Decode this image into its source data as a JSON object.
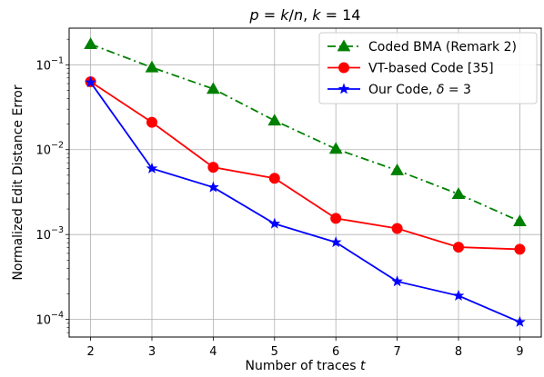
{
  "chart_data": {
    "type": "line",
    "title": "p = k/n, k = 14",
    "xlabel": "Number of traces t",
    "ylabel": "Normalized Edit Distance Error",
    "x": [
      2,
      3,
      4,
      5,
      6,
      7,
      8,
      9
    ],
    "x_tick_labels": [
      "2",
      "3",
      "4",
      "5",
      "6",
      "7",
      "8",
      "9"
    ],
    "y_scale": "log",
    "y_ticks": [
      {
        "value": 0.0001,
        "base": "10",
        "exp": "−4"
      },
      {
        "value": 0.001,
        "base": "10",
        "exp": "−3"
      },
      {
        "value": 0.01,
        "base": "10",
        "exp": "−2"
      },
      {
        "value": 0.1,
        "base": "10",
        "exp": "−1"
      }
    ],
    "xlim": [
      1.65,
      9.35
    ],
    "ylim": [
      6.2e-05,
      0.27
    ],
    "grid": true,
    "legend_position": "top-right",
    "series": [
      {
        "name": "Coded BMA (Remark 2)",
        "color": "#008000",
        "marker": "triangle",
        "dash": "dashdot",
        "values": [
          0.175,
          0.093,
          0.052,
          0.022,
          0.0102,
          0.0057,
          0.003,
          0.00143
        ]
      },
      {
        "name": "VT-based Code [35]",
        "color": "#ff0000",
        "marker": "circle",
        "dash": "solid",
        "values": [
          0.063,
          0.021,
          0.0062,
          0.0046,
          0.00155,
          0.00118,
          0.00071,
          0.00067
        ]
      },
      {
        "name": "Our Code, δ = 3",
        "color": "#0000ff",
        "marker": "star",
        "dash": "solid",
        "values": [
          0.062,
          0.006,
          0.0036,
          0.00134,
          0.00081,
          0.00028,
          0.00019,
          9.3e-05
        ]
      }
    ]
  }
}
